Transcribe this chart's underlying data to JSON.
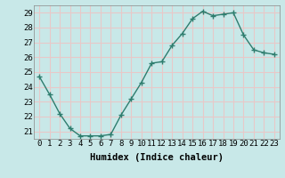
{
  "x": [
    0,
    1,
    2,
    3,
    4,
    5,
    6,
    7,
    8,
    9,
    10,
    11,
    12,
    13,
    14,
    15,
    16,
    17,
    18,
    19,
    20,
    21,
    22,
    23
  ],
  "y": [
    24.7,
    23.5,
    22.2,
    21.2,
    20.7,
    20.7,
    20.7,
    20.8,
    22.1,
    23.2,
    24.3,
    25.6,
    25.7,
    26.8,
    27.6,
    28.6,
    29.1,
    28.8,
    28.9,
    29.0,
    27.5,
    26.5,
    26.3,
    26.2
  ],
  "line_color": "#2e7d6e",
  "marker": "+",
  "marker_size": 4,
  "bg_color": "#c8e8e8",
  "grid_color": "#e8c8c8",
  "xlabel": "Humidex (Indice chaleur)",
  "ylim_min": 20.5,
  "ylim_max": 29.5,
  "yticks": [
    21,
    22,
    23,
    24,
    25,
    26,
    27,
    28,
    29
  ],
  "xticks": [
    0,
    1,
    2,
    3,
    4,
    5,
    6,
    7,
    8,
    9,
    10,
    11,
    12,
    13,
    14,
    15,
    16,
    17,
    18,
    19,
    20,
    21,
    22,
    23
  ],
  "tick_fontsize": 6.5,
  "xlabel_fontsize": 7.5,
  "line_width": 1.0,
  "marker_edge_width": 1.0
}
